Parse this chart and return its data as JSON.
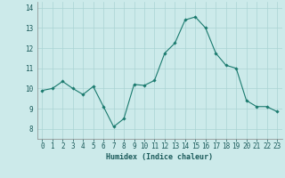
{
  "x": [
    0,
    1,
    2,
    3,
    4,
    5,
    6,
    7,
    8,
    9,
    10,
    11,
    12,
    13,
    14,
    15,
    16,
    17,
    18,
    19,
    20,
    21,
    22,
    23
  ],
  "y": [
    9.9,
    10.0,
    10.35,
    10.0,
    9.7,
    10.1,
    9.1,
    8.1,
    8.5,
    10.2,
    10.15,
    10.4,
    11.75,
    12.25,
    13.4,
    13.55,
    13.0,
    11.75,
    11.15,
    11.0,
    9.4,
    9.1,
    9.1,
    8.85
  ],
  "line_color": "#1a7a6e",
  "marker": "D",
  "marker_size": 1.8,
  "linewidth": 0.8,
  "bg_color": "#cceaea",
  "grid_color": "#aad4d4",
  "xlabel": "Humidex (Indice chaleur)",
  "xlabel_fontsize": 6.0,
  "tick_fontsize": 5.5,
  "ylim": [
    7.5,
    14.3
  ],
  "xlim": [
    -0.5,
    23.5
  ],
  "yticks": [
    8,
    9,
    10,
    11,
    12,
    13,
    14
  ],
  "xticks": [
    0,
    1,
    2,
    3,
    4,
    5,
    6,
    7,
    8,
    9,
    10,
    11,
    12,
    13,
    14,
    15,
    16,
    17,
    18,
    19,
    20,
    21,
    22,
    23
  ]
}
